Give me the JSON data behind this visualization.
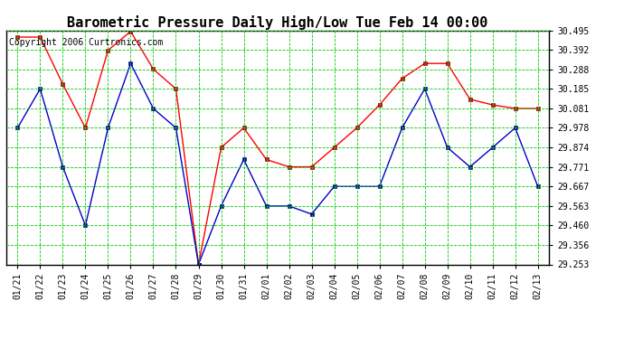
{
  "title": "Barometric Pressure Daily High/Low Tue Feb 14 00:00",
  "copyright": "Copyright 2006 Curtronics.com",
  "labels": [
    "01/21",
    "01/22",
    "01/23",
    "01/24",
    "01/25",
    "01/26",
    "01/27",
    "01/28",
    "01/29",
    "01/30",
    "01/31",
    "02/01",
    "02/02",
    "02/03",
    "02/04",
    "02/05",
    "02/06",
    "02/07",
    "02/08",
    "02/09",
    "02/10",
    "02/11",
    "02/12",
    "02/13"
  ],
  "high_values": [
    30.46,
    30.46,
    30.21,
    29.978,
    30.39,
    30.49,
    30.29,
    30.185,
    29.253,
    29.874,
    29.978,
    29.81,
    29.771,
    29.771,
    29.874,
    29.978,
    30.1,
    30.24,
    30.32,
    30.32,
    30.13,
    30.1,
    30.081,
    30.081
  ],
  "low_values": [
    29.978,
    30.185,
    29.771,
    29.46,
    29.978,
    30.32,
    30.081,
    29.978,
    29.253,
    29.563,
    29.81,
    29.563,
    29.563,
    29.52,
    29.667,
    29.667,
    29.667,
    29.978,
    30.185,
    29.874,
    29.771,
    29.874,
    29.978,
    29.667
  ],
  "high_color": "#ff0000",
  "low_color": "#0000cc",
  "grid_color": "#00cc00",
  "bg_color": "#ffffff",
  "ylim_min": 29.253,
  "ylim_max": 30.495,
  "yticks": [
    29.253,
    29.356,
    29.46,
    29.563,
    29.667,
    29.771,
    29.874,
    29.978,
    30.081,
    30.185,
    30.288,
    30.392,
    30.495
  ],
  "title_fontsize": 11,
  "copyright_fontsize": 7,
  "tick_fontsize": 7
}
